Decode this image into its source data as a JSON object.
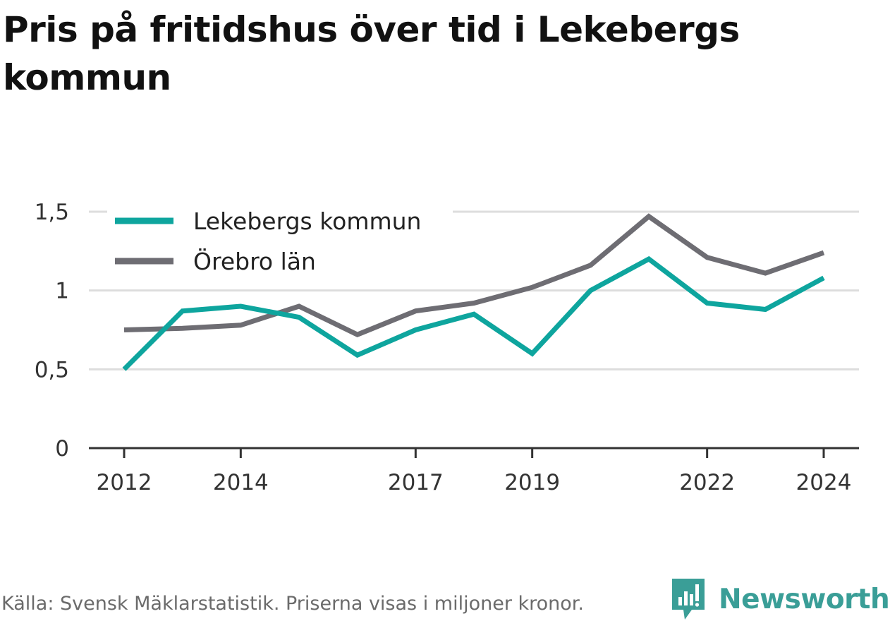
{
  "title": "Pris på fritidshus över tid i Lekebergs kommun",
  "source": "Källa: Svensk Mäklarstatistik. Priserna visas i miljoner kronor.",
  "brand": {
    "name": "Newsworthy",
    "icon": "newsworthy-logo-icon",
    "color": "#3a9e97"
  },
  "colors": {
    "lekeberg": "#0ea59e",
    "orebro": "#6e6d73",
    "grid": "#dddddd",
    "axis": "#333333",
    "tick_text": "#333333"
  },
  "chart_data": {
    "type": "line",
    "title": "Pris på fritidshus över tid i Lekebergs kommun",
    "xlabel": "",
    "ylabel": "",
    "x": [
      2012,
      2013,
      2014,
      2015,
      2016,
      2017,
      2018,
      2019,
      2020,
      2021,
      2022,
      2023,
      2024
    ],
    "x_ticks": [
      2012,
      2014,
      2017,
      2019,
      2022,
      2024
    ],
    "y_ticks": [
      0,
      0.5,
      1,
      1.5
    ],
    "y_tick_labels": [
      "0",
      "0,5",
      "1",
      "1,5"
    ],
    "ylim": [
      0,
      1.5
    ],
    "grid": "horizontal",
    "legend_position": "top-left",
    "series": [
      {
        "name": "Lekebergs kommun",
        "color": "#0ea59e",
        "values": [
          0.5,
          0.87,
          0.9,
          0.83,
          0.59,
          0.75,
          0.85,
          0.6,
          1.0,
          1.2,
          0.92,
          0.88,
          1.08
        ]
      },
      {
        "name": "Örebro län",
        "color": "#6e6d73",
        "values": [
          0.75,
          0.76,
          0.78,
          0.9,
          0.72,
          0.87,
          0.92,
          1.02,
          1.16,
          1.47,
          1.21,
          1.11,
          1.24
        ]
      }
    ]
  }
}
